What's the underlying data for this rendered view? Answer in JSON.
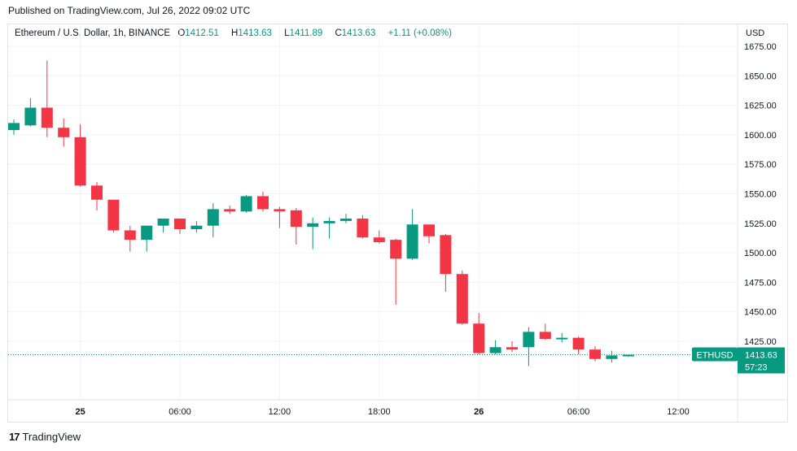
{
  "published": "Published on TradingView.com, Jul 26, 2022 09:02 UTC",
  "legend": {
    "symbol": "Ethereum / U.S. Dollar, 1h, BINANCE",
    "o_label": "O",
    "o_value": "1412.51",
    "h_label": "H",
    "h_value": "1413.63",
    "l_label": "L",
    "l_value": "1411.89",
    "c_label": "C",
    "c_value": "1413.63",
    "change": "+1.11 (+0.08%)"
  },
  "currency": "USD",
  "price_tag": {
    "label": "ETHUSD",
    "price": "1413.63",
    "countdown": "57:23"
  },
  "footer": {
    "brand": "TradingView",
    "logo_glyph": "17"
  },
  "colors": {
    "up": "#089981",
    "down": "#f23645",
    "grid": "#f0f3fa",
    "axis_text": "#131722"
  },
  "chart_data": {
    "type": "candlestick",
    "title": "Ethereum / U.S. Dollar, 1h, BINANCE",
    "ylabel": "USD",
    "ylim": [
      1390,
      1680
    ],
    "yticks": [
      1425,
      1450,
      1475,
      1500,
      1525,
      1550,
      1575,
      1600,
      1625,
      1650,
      1675
    ],
    "ytick_labels": [
      "1425.00",
      "1450.00",
      "1475.00",
      "1500.00",
      "1525.00",
      "1550.00",
      "1575.00",
      "1600.00",
      "1625.00",
      "1650.00",
      "1675.00"
    ],
    "xticks": [
      {
        "index": 4,
        "label": "25"
      },
      {
        "index": 10,
        "label": "06:00"
      },
      {
        "index": 16,
        "label": "12:00"
      },
      {
        "index": 22,
        "label": "18:00"
      },
      {
        "index": 28,
        "label": "26"
      },
      {
        "index": 34,
        "label": "06:00"
      },
      {
        "index": 40,
        "label": "12:00"
      }
    ],
    "last_price": 1413.63,
    "grid": true,
    "candles": [
      {
        "o": 1604,
        "h": 1613,
        "l": 1600,
        "c": 1610
      },
      {
        "o": 1608,
        "h": 1631,
        "l": 1607,
        "c": 1623
      },
      {
        "o": 1623,
        "h": 1663,
        "l": 1598,
        "c": 1606
      },
      {
        "o": 1606,
        "h": 1614,
        "l": 1590,
        "c": 1598
      },
      {
        "o": 1598,
        "h": 1609,
        "l": 1556,
        "c": 1557
      },
      {
        "o": 1557,
        "h": 1560,
        "l": 1536,
        "c": 1545
      },
      {
        "o": 1545,
        "h": 1545,
        "l": 1517,
        "c": 1519
      },
      {
        "o": 1519,
        "h": 1523,
        "l": 1501,
        "c": 1511
      },
      {
        "o": 1511,
        "h": 1523,
        "l": 1501,
        "c": 1523
      },
      {
        "o": 1523,
        "h": 1529,
        "l": 1517,
        "c": 1529
      },
      {
        "o": 1529,
        "h": 1529,
        "l": 1516,
        "c": 1520
      },
      {
        "o": 1520,
        "h": 1527,
        "l": 1517,
        "c": 1523
      },
      {
        "o": 1523,
        "h": 1542,
        "l": 1513,
        "c": 1537
      },
      {
        "o": 1537,
        "h": 1540,
        "l": 1533,
        "c": 1535
      },
      {
        "o": 1535,
        "h": 1549,
        "l": 1534,
        "c": 1548
      },
      {
        "o": 1548,
        "h": 1552,
        "l": 1535,
        "c": 1537
      },
      {
        "o": 1537,
        "h": 1539,
        "l": 1521,
        "c": 1535
      },
      {
        "o": 1536,
        "h": 1538,
        "l": 1507,
        "c": 1522
      },
      {
        "o": 1522,
        "h": 1530,
        "l": 1503,
        "c": 1525
      },
      {
        "o": 1525,
        "h": 1530,
        "l": 1512,
        "c": 1527
      },
      {
        "o": 1527,
        "h": 1533,
        "l": 1525,
        "c": 1529
      },
      {
        "o": 1529,
        "h": 1532,
        "l": 1512,
        "c": 1513
      },
      {
        "o": 1513,
        "h": 1519,
        "l": 1508,
        "c": 1509
      },
      {
        "o": 1511,
        "h": 1512,
        "l": 1456,
        "c": 1495
      },
      {
        "o": 1495,
        "h": 1537,
        "l": 1494,
        "c": 1524
      },
      {
        "o": 1524,
        "h": 1524,
        "l": 1508,
        "c": 1514
      },
      {
        "o": 1515,
        "h": 1516,
        "l": 1467,
        "c": 1482
      },
      {
        "o": 1482,
        "h": 1485,
        "l": 1439,
        "c": 1440
      },
      {
        "o": 1440,
        "h": 1449,
        "l": 1414,
        "c": 1415
      },
      {
        "o": 1415,
        "h": 1426,
        "l": 1414,
        "c": 1420
      },
      {
        "o": 1420,
        "h": 1425,
        "l": 1416,
        "c": 1418
      },
      {
        "o": 1420,
        "h": 1437,
        "l": 1404,
        "c": 1433
      },
      {
        "o": 1433,
        "h": 1440,
        "l": 1426,
        "c": 1427
      },
      {
        "o": 1427,
        "h": 1432,
        "l": 1424,
        "c": 1428
      },
      {
        "o": 1428,
        "h": 1429,
        "l": 1414,
        "c": 1418
      },
      {
        "o": 1418,
        "h": 1421,
        "l": 1408,
        "c": 1410
      },
      {
        "o": 1410,
        "h": 1417,
        "l": 1407,
        "c": 1413
      },
      {
        "o": 1412.51,
        "h": 1413.63,
        "l": 1411.89,
        "c": 1413.63
      }
    ]
  }
}
